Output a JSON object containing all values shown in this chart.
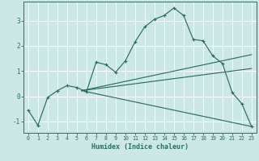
{
  "xlabel": "Humidex (Indice chaleur)",
  "bg_color": "#cce8e4",
  "grid_color": "#ffffff",
  "line_color": "#2a6e62",
  "xlim": [
    -0.5,
    23.5
  ],
  "ylim": [
    -1.45,
    3.75
  ],
  "xticks": [
    0,
    1,
    2,
    3,
    4,
    5,
    6,
    7,
    8,
    9,
    10,
    11,
    12,
    13,
    14,
    15,
    16,
    17,
    18,
    19,
    20,
    21,
    22,
    23
  ],
  "yticks": [
    -1,
    0,
    1,
    2,
    3
  ],
  "main_x": [
    0,
    1,
    2,
    3,
    4,
    5,
    6,
    7,
    8,
    9,
    10,
    11,
    12,
    13,
    14,
    15,
    16,
    17,
    18,
    19,
    20,
    21,
    22,
    23
  ],
  "main_y": [
    -0.55,
    -1.15,
    -0.05,
    0.22,
    0.42,
    0.35,
    0.18,
    1.35,
    1.25,
    0.95,
    1.4,
    2.15,
    2.75,
    3.05,
    3.2,
    3.5,
    3.2,
    2.25,
    2.2,
    1.6,
    1.3,
    0.15,
    -0.3,
    -1.2
  ],
  "lines": [
    {
      "x": [
        5.5,
        23
      ],
      "y": [
        0.22,
        1.65
      ]
    },
    {
      "x": [
        5.5,
        23
      ],
      "y": [
        0.22,
        1.1
      ]
    },
    {
      "x": [
        5.5,
        23
      ],
      "y": [
        0.22,
        -1.2
      ]
    }
  ]
}
